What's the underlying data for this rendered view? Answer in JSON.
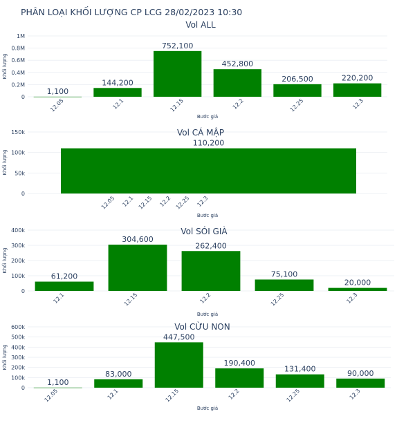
{
  "title": "PHÂN LOẠI KHỐI LƯỢNG CP LCG 28/02/2023 10:30",
  "chart_data": [
    {
      "type": "bar",
      "title": "Vol ALL",
      "xlabel": "Bước giá",
      "ylabel": "Khối lượng",
      "categories": [
        "12.05",
        "12.1",
        "12.15",
        "12.2",
        "12.25",
        "12.3"
      ],
      "values": [
        1100,
        144200,
        752100,
        452800,
        206500,
        220200
      ],
      "labels": [
        "1,100",
        "144,200",
        "752,100",
        "452,800",
        "206,500",
        "220,200"
      ],
      "ylim": [
        0,
        1000000
      ],
      "yticks": [
        0,
        200000,
        400000,
        600000,
        800000,
        1000000
      ],
      "ytick_labels": [
        "0",
        "0.2M",
        "0.4M",
        "0.6M",
        "0.8M",
        "1M"
      ],
      "color": "#008000"
    },
    {
      "type": "bar",
      "title": "Vol CÁ MẬP",
      "xlabel": "Bước giá",
      "ylabel": "Khối lượng",
      "categories": [
        "12.05",
        "12.1",
        "12.15",
        "12.2",
        "12.25",
        "12.3"
      ],
      "bar": {
        "x_from": 12.05,
        "x_to": 12.3,
        "value": 110200,
        "label": "110,200"
      },
      "ylim": [
        0,
        150000
      ],
      "yticks": [
        0,
        50000,
        100000,
        150000
      ],
      "ytick_labels": [
        "0",
        "50k",
        "100k",
        "150k"
      ],
      "color": "#008000"
    },
    {
      "type": "bar",
      "title": "Vol SÓI GIÀ",
      "xlabel": "Bước giá",
      "ylabel": "Khối lượng",
      "categories": [
        "12.1",
        "12.15",
        "12.2",
        "12.25",
        "12.3"
      ],
      "values": [
        61200,
        304600,
        262400,
        75100,
        20000
      ],
      "labels": [
        "61,200",
        "304,600",
        "262,400",
        "75,100",
        "20,000"
      ],
      "ylim": [
        0,
        400000
      ],
      "yticks": [
        0,
        100000,
        200000,
        300000,
        400000
      ],
      "ytick_labels": [
        "0",
        "100k",
        "200k",
        "300k",
        "400k"
      ],
      "color": "#008000"
    },
    {
      "type": "bar",
      "title": "Vol CỪU NON",
      "xlabel": "Bước giá",
      "ylabel": "Khối lượng",
      "categories": [
        "12.05",
        "12.1",
        "12.15",
        "12.2",
        "12.25",
        "12.3"
      ],
      "values": [
        1100,
        83000,
        447500,
        190400,
        131400,
        90000
      ],
      "labels": [
        "1,100",
        "83,000",
        "447,500",
        "190,400",
        "131,400",
        "90,000"
      ],
      "ylim": [
        0,
        600000
      ],
      "yticks": [
        0,
        100000,
        200000,
        300000,
        400000,
        500000,
        600000
      ],
      "ytick_labels": [
        "0",
        "100k",
        "200k",
        "300k",
        "400k",
        "500k",
        "600k"
      ],
      "color": "#008000"
    }
  ]
}
